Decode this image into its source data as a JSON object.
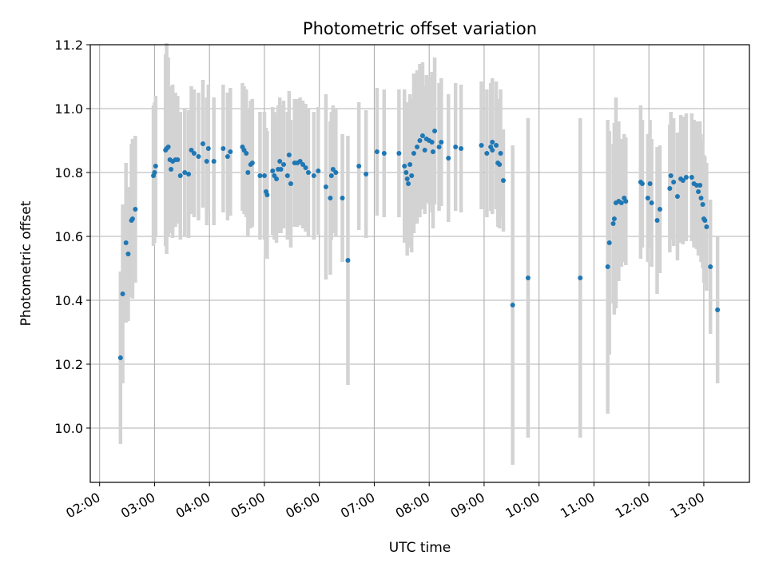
{
  "chart_data": {
    "type": "scatter",
    "title": "Photometric offset variation",
    "xlabel": "UTC time",
    "ylabel": "Photometric offset",
    "x_unit": "UTC time of day (hours)",
    "xlim": [
      1.83,
      13.83
    ],
    "ylim": [
      9.83,
      11.2
    ],
    "x_ticks": [
      2,
      3,
      4,
      5,
      6,
      7,
      8,
      9,
      10,
      11,
      12,
      13
    ],
    "x_tick_labels": [
      "02:00",
      "03:00",
      "04:00",
      "05:00",
      "06:00",
      "07:00",
      "08:00",
      "09:00",
      "10:00",
      "11:00",
      "12:00",
      "13:00"
    ],
    "y_ticks": [
      10.0,
      10.2,
      10.4,
      10.6,
      10.8,
      11.0,
      11.2
    ],
    "y_tick_labels": [
      "10.0",
      "10.2",
      "10.4",
      "10.6",
      "10.8",
      "11.0",
      "11.2"
    ],
    "grid": true,
    "legend": "none",
    "colors": {
      "point": "#1f77b4",
      "errorbar": "#d3d3d3",
      "grid": "#b0b0b0"
    },
    "points": [
      [
        2.38,
        10.22,
        0.27
      ],
      [
        2.42,
        10.42,
        0.28
      ],
      [
        2.48,
        10.58,
        0.25
      ],
      [
        2.52,
        10.545,
        0.21
      ],
      [
        2.58,
        10.65,
        0.24
      ],
      [
        2.6,
        10.655,
        0.25
      ],
      [
        2.65,
        10.685,
        0.23
      ],
      [
        2.98,
        10.79,
        0.22
      ],
      [
        3.0,
        10.8,
        0.22
      ],
      [
        3.02,
        10.82,
        0.22
      ],
      [
        3.2,
        10.87,
        0.3
      ],
      [
        3.22,
        10.875,
        0.33
      ],
      [
        3.25,
        10.88,
        0.28
      ],
      [
        3.28,
        10.84,
        0.23
      ],
      [
        3.3,
        10.81,
        0.2
      ],
      [
        3.33,
        10.835,
        0.24
      ],
      [
        3.38,
        10.84,
        0.21
      ],
      [
        3.42,
        10.84,
        0.2
      ],
      [
        3.47,
        10.79,
        0.2
      ],
      [
        3.55,
        10.8,
        0.2
      ],
      [
        3.62,
        10.795,
        0.2
      ],
      [
        3.67,
        10.87,
        0.2
      ],
      [
        3.72,
        10.86,
        0.2
      ],
      [
        3.8,
        10.85,
        0.2
      ],
      [
        3.88,
        10.89,
        0.2
      ],
      [
        3.98,
        10.875,
        0.2
      ],
      [
        3.95,
        10.835,
        0.2
      ],
      [
        4.08,
        10.835,
        0.2
      ],
      [
        4.25,
        10.875,
        0.2
      ],
      [
        4.33,
        10.85,
        0.2
      ],
      [
        4.38,
        10.865,
        0.2
      ],
      [
        4.6,
        10.88,
        0.2
      ],
      [
        4.63,
        10.87,
        0.2
      ],
      [
        4.67,
        10.86,
        0.2
      ],
      [
        4.7,
        10.8,
        0.2
      ],
      [
        4.75,
        10.825,
        0.2
      ],
      [
        4.78,
        10.83,
        0.2
      ],
      [
        4.92,
        10.79,
        0.2
      ],
      [
        5.0,
        10.79,
        0.2
      ],
      [
        5.03,
        10.74,
        0.2
      ],
      [
        5.05,
        10.73,
        0.2
      ],
      [
        5.15,
        10.805,
        0.2
      ],
      [
        5.18,
        10.79,
        0.2
      ],
      [
        5.22,
        10.78,
        0.2
      ],
      [
        5.25,
        10.81,
        0.2
      ],
      [
        5.28,
        10.835,
        0.2
      ],
      [
        5.3,
        10.81,
        0.2
      ],
      [
        5.35,
        10.825,
        0.2
      ],
      [
        5.42,
        10.79,
        0.2
      ],
      [
        5.45,
        10.855,
        0.2
      ],
      [
        5.48,
        10.765,
        0.2
      ],
      [
        5.55,
        10.83,
        0.2
      ],
      [
        5.6,
        10.83,
        0.2
      ],
      [
        5.65,
        10.835,
        0.2
      ],
      [
        5.7,
        10.825,
        0.2
      ],
      [
        5.75,
        10.815,
        0.2
      ],
      [
        5.8,
        10.8,
        0.2
      ],
      [
        5.9,
        10.79,
        0.2
      ],
      [
        5.98,
        10.805,
        0.2
      ],
      [
        6.12,
        10.755,
        0.29
      ],
      [
        6.2,
        10.72,
        0.24
      ],
      [
        6.22,
        10.79,
        0.2
      ],
      [
        6.25,
        10.81,
        0.2
      ],
      [
        6.3,
        10.8,
        0.2
      ],
      [
        6.42,
        10.72,
        0.2
      ],
      [
        6.52,
        10.525,
        0.39
      ],
      [
        6.72,
        10.82,
        0.2
      ],
      [
        6.85,
        10.795,
        0.2
      ],
      [
        7.05,
        10.865,
        0.2
      ],
      [
        7.18,
        10.86,
        0.2
      ],
      [
        7.45,
        10.86,
        0.2
      ],
      [
        7.55,
        10.82,
        0.24
      ],
      [
        7.58,
        10.8,
        0.22
      ],
      [
        7.6,
        10.78,
        0.24
      ],
      [
        7.62,
        10.765,
        0.2
      ],
      [
        7.65,
        10.825,
        0.22
      ],
      [
        7.68,
        10.79,
        0.24
      ],
      [
        7.72,
        10.86,
        0.25
      ],
      [
        7.78,
        10.88,
        0.24
      ],
      [
        7.83,
        10.9,
        0.24
      ],
      [
        7.88,
        10.915,
        0.23
      ],
      [
        7.92,
        10.87,
        0.2
      ],
      [
        7.95,
        10.905,
        0.2
      ],
      [
        8.0,
        10.9,
        0.2
      ],
      [
        8.05,
        10.895,
        0.22
      ],
      [
        8.1,
        10.93,
        0.23
      ],
      [
        8.07,
        10.865,
        0.24
      ],
      [
        8.18,
        10.88,
        0.2
      ],
      [
        8.22,
        10.895,
        0.2
      ],
      [
        8.35,
        10.845,
        0.2
      ],
      [
        8.48,
        10.88,
        0.2
      ],
      [
        8.58,
        10.875,
        0.2
      ],
      [
        8.95,
        10.885,
        0.2
      ],
      [
        9.05,
        10.86,
        0.2
      ],
      [
        9.12,
        10.88,
        0.2
      ],
      [
        9.15,
        10.87,
        0.2
      ],
      [
        9.15,
        10.895,
        0.2
      ],
      [
        9.22,
        10.885,
        0.2
      ],
      [
        9.25,
        10.83,
        0.2
      ],
      [
        9.28,
        10.825,
        0.2
      ],
      [
        9.3,
        10.86,
        0.2
      ],
      [
        9.35,
        10.775,
        0.16
      ],
      [
        9.52,
        10.385,
        0.5
      ],
      [
        9.8,
        10.47,
        0.5
      ],
      [
        10.75,
        10.47,
        0.5
      ],
      [
        11.25,
        10.505,
        0.46
      ],
      [
        11.28,
        10.58,
        0.35
      ],
      [
        11.35,
        10.64,
        0.25
      ],
      [
        11.37,
        10.655,
        0.3
      ],
      [
        11.4,
        10.705,
        0.33
      ],
      [
        11.45,
        10.71,
        0.25
      ],
      [
        11.5,
        10.705,
        0.2
      ],
      [
        11.55,
        10.72,
        0.2
      ],
      [
        11.58,
        10.71,
        0.2
      ],
      [
        11.85,
        10.77,
        0.24
      ],
      [
        11.88,
        10.765,
        0.2
      ],
      [
        11.98,
        10.72,
        0.2
      ],
      [
        12.02,
        10.765,
        0.2
      ],
      [
        12.05,
        10.705,
        0.2
      ],
      [
        12.15,
        10.65,
        0.23
      ],
      [
        12.2,
        10.685,
        0.2
      ],
      [
        12.38,
        10.75,
        0.2
      ],
      [
        12.4,
        10.79,
        0.2
      ],
      [
        12.45,
        10.77,
        0.2
      ],
      [
        12.52,
        10.725,
        0.2
      ],
      [
        12.58,
        10.78,
        0.2
      ],
      [
        12.62,
        10.775,
        0.2
      ],
      [
        12.68,
        10.785,
        0.2
      ],
      [
        12.78,
        10.785,
        0.2
      ],
      [
        12.82,
        10.765,
        0.2
      ],
      [
        12.87,
        10.76,
        0.2
      ],
      [
        12.9,
        10.74,
        0.2
      ],
      [
        12.93,
        10.76,
        0.2
      ],
      [
        12.95,
        10.72,
        0.2
      ],
      [
        12.98,
        10.7,
        0.2
      ],
      [
        13.0,
        10.655,
        0.2
      ],
      [
        13.02,
        10.65,
        0.2
      ],
      [
        13.05,
        10.63,
        0.2
      ],
      [
        13.12,
        10.505,
        0.21
      ],
      [
        13.25,
        10.37,
        0.23
      ]
    ]
  }
}
